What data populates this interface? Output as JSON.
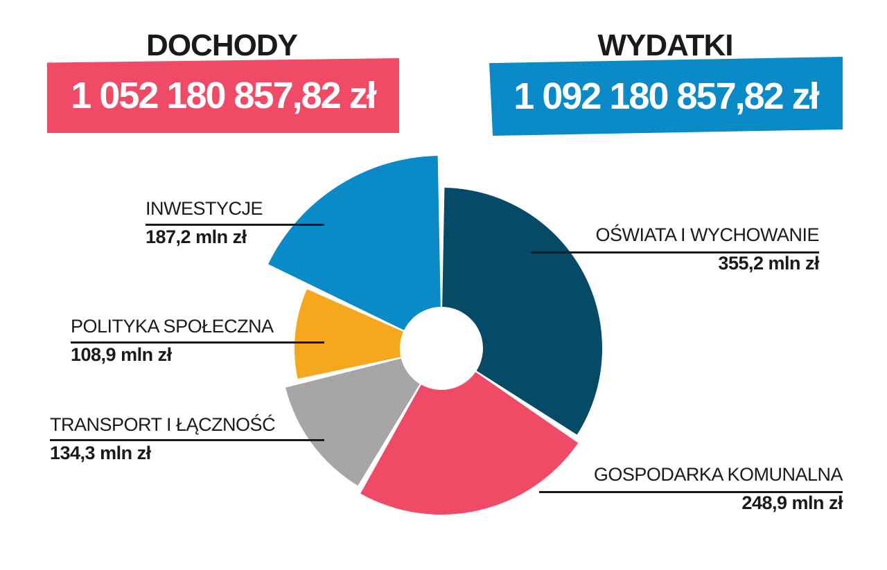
{
  "income": {
    "label": "DOCHODY",
    "amount": "1 052 180 857,82 zł",
    "color": "#ef4b67"
  },
  "expenses": {
    "label": "WYDATKI",
    "amount": "1 092 180 857,82 zł",
    "color": "#0a8ac6"
  },
  "chart_data": {
    "type": "pie",
    "unit": "mln zł",
    "slices": [
      {
        "name": "OŚWIATA I WYCHOWANIE",
        "value": 355.2,
        "value_label": "355,2 mln zł",
        "color": "#054a66"
      },
      {
        "name": "GOSPODARKA KOMUNALNA",
        "value": 248.9,
        "value_label": "248,9 mln zł",
        "color": "#ef4b67"
      },
      {
        "name": "TRANSPORT I ŁĄCZNOŚĆ",
        "value": 134.3,
        "value_label": "134,3 mln zł",
        "color": "#a6a6a6"
      },
      {
        "name": "POLITYKA SPOŁECZNA",
        "value": 108.9,
        "value_label": "108,9 mln zł",
        "color": "#f5a81e"
      },
      {
        "name": "INWESTYCJE",
        "value": 187.2,
        "value_label": "187,2 mln zł",
        "color": "#0a8ac6"
      }
    ]
  }
}
